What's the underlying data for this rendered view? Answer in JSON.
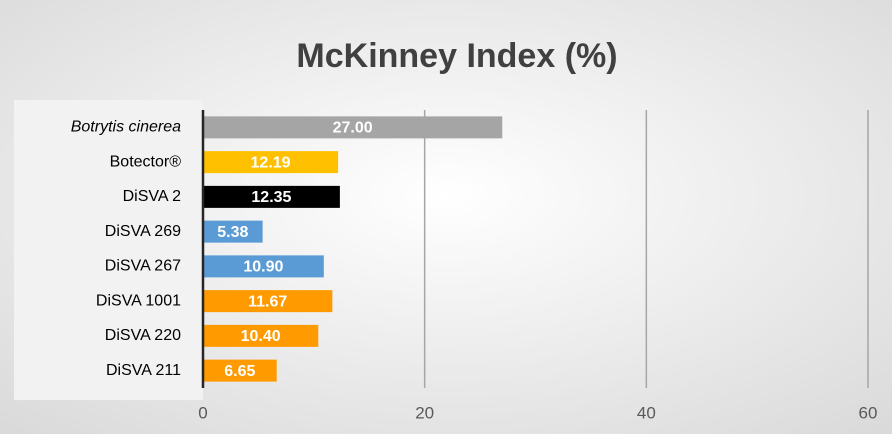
{
  "chart_data": {
    "type": "bar",
    "orientation": "horizontal",
    "title": "McKinney Index (%)",
    "categories": [
      "Botrytis cinerea",
      "Botector®",
      "DiSVA 2",
      "DiSVA 269",
      "DiSVA 267",
      "DiSVA 1001",
      "DiSVA 220",
      "DiSVA 211"
    ],
    "values": [
      27.0,
      12.19,
      12.35,
      5.38,
      10.9,
      11.67,
      10.4,
      6.65
    ],
    "value_labels": [
      "27.00",
      "12.19",
      "12.35",
      "5.38",
      "10.90",
      "11.67",
      "10.40",
      "6.65"
    ],
    "colors": [
      "#a5a5a5",
      "#ffc000",
      "#000000",
      "#5b9bd5",
      "#5b9bd5",
      "#ff9a00",
      "#ff9a00",
      "#ff9a00"
    ],
    "xlim": [
      0,
      60
    ],
    "xticks": [
      0,
      20,
      40,
      60
    ],
    "grid": true
  }
}
